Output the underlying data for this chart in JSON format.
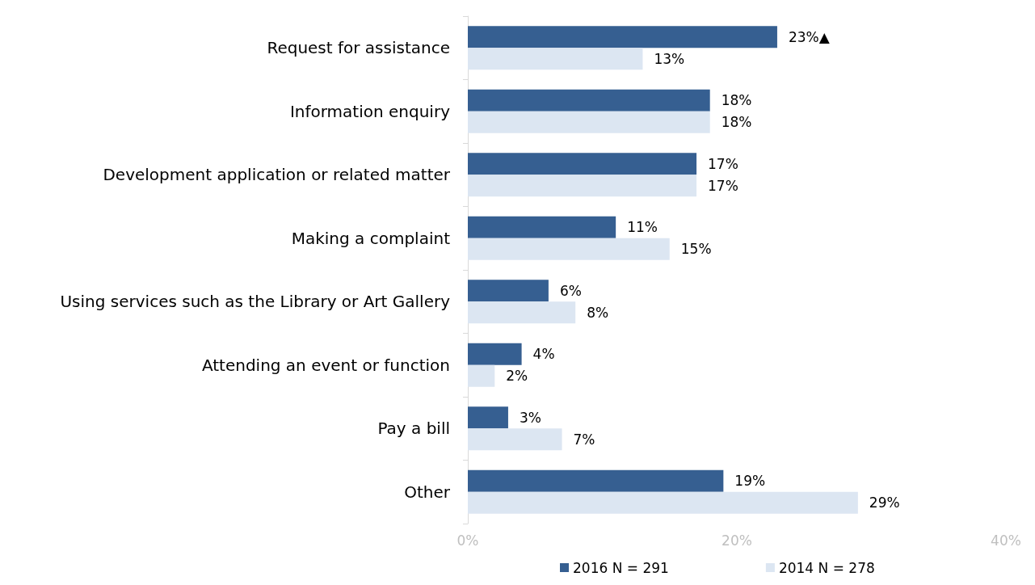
{
  "chart_data": {
    "type": "bar",
    "orientation": "horizontal",
    "categories": [
      "Request for assistance",
      "Information enquiry",
      "Development application or related matter",
      "Making a complaint",
      "Using services such as the Library or Art Gallery",
      "Attending an event or function",
      "Pay a bill",
      "Other"
    ],
    "series": [
      {
        "name": "2016 N = 291",
        "color": "#365f91",
        "values": [
          23,
          18,
          17,
          11,
          6,
          4,
          3,
          19
        ],
        "value_labels": [
          "23%▲",
          "18%",
          "17%",
          "11%",
          "6%",
          "4%",
          "3%",
          "19%"
        ]
      },
      {
        "name": "2014 N = 278",
        "color": "#dce6f2",
        "values": [
          13,
          18,
          17,
          15,
          8,
          2,
          7,
          29
        ],
        "value_labels": [
          "13%",
          "18%",
          "17%",
          "15%",
          "8%",
          "2%",
          "7%",
          "29%"
        ]
      }
    ],
    "xlim": [
      0,
      40
    ],
    "xticks": [
      {
        "value": 0,
        "label": "0%"
      },
      {
        "value": 20,
        "label": "20%"
      },
      {
        "value": 40,
        "label": "40%"
      }
    ],
    "grid": false,
    "legend": "bottom"
  }
}
